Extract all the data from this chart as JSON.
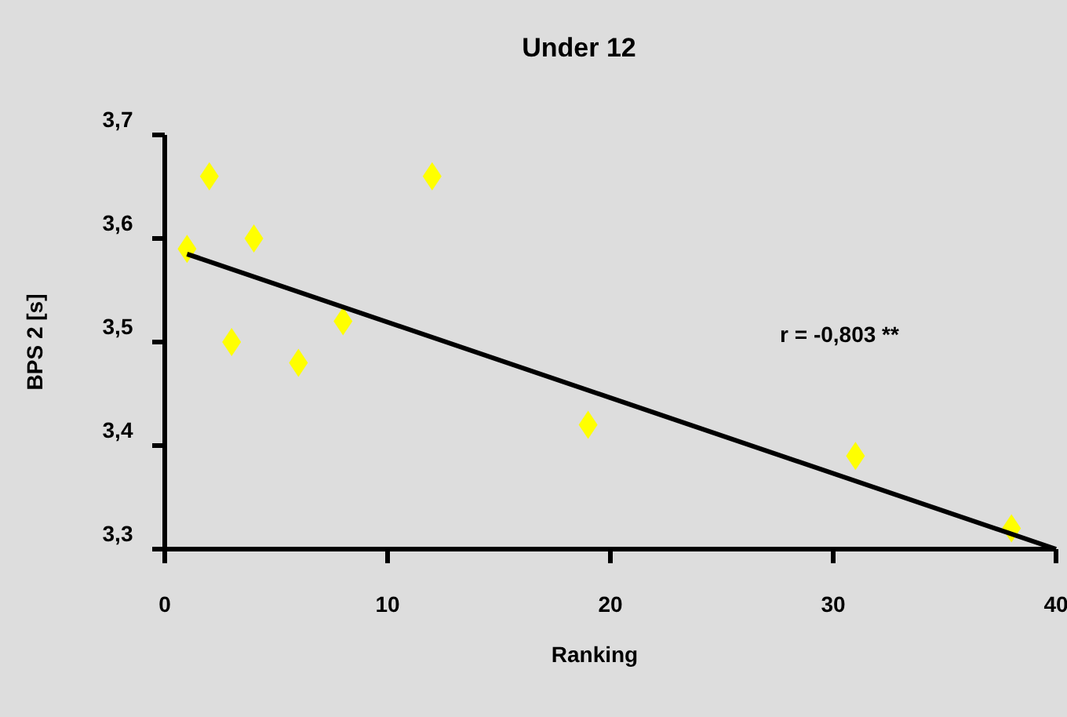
{
  "chart_data": {
    "type": "scatter",
    "title": "Under 12",
    "xlabel": "Ranking",
    "ylabel": "BPS 2 [s]",
    "xlim": [
      0,
      40
    ],
    "xticks": [
      0,
      10,
      20,
      30,
      40
    ],
    "ylim": [
      3.3,
      3.7
    ],
    "yticks": [
      {
        "value": 3.3,
        "label": "3,3"
      },
      {
        "value": 3.4,
        "label": "3,4"
      },
      {
        "value": 3.5,
        "label": "3,5"
      },
      {
        "value": 3.6,
        "label": "3,6"
      },
      {
        "value": 3.7,
        "label": "3,7"
      }
    ],
    "grid": false,
    "series": [
      {
        "marker": "diamond",
        "color": "#ffff00",
        "x": [
          1,
          2,
          3,
          4,
          6,
          8,
          12,
          19,
          31,
          38
        ],
        "values": [
          3.59,
          3.66,
          3.5,
          3.6,
          3.48,
          3.52,
          3.66,
          3.42,
          3.39,
          3.32
        ]
      },
      {
        "type": "line",
        "color": "#000000",
        "x": [
          1,
          40
        ],
        "values": [
          3.585,
          3.3
        ]
      }
    ],
    "annotations": [
      "r = -0,803 **"
    ]
  }
}
